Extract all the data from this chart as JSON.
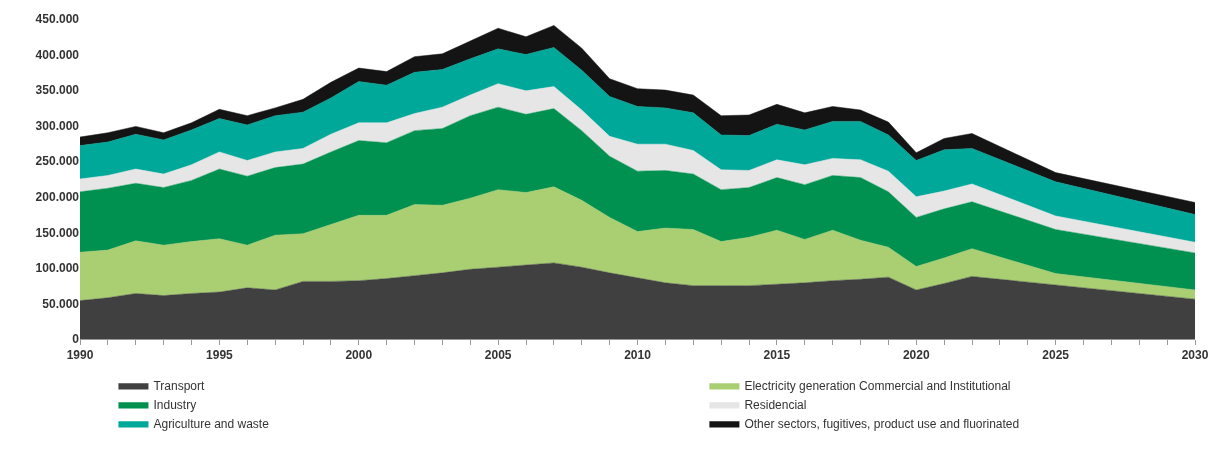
{
  "chart_data": {
    "type": "area",
    "stacked": true,
    "legend": "bottom",
    "x": [
      1990,
      1991,
      1992,
      1993,
      1994,
      1995,
      1996,
      1997,
      1998,
      1999,
      2000,
      2001,
      2002,
      2003,
      2004,
      2005,
      2006,
      2007,
      2008,
      2009,
      2010,
      2011,
      2012,
      2013,
      2014,
      2015,
      2016,
      2017,
      2018,
      2019,
      2020,
      2021,
      2022,
      2025,
      2030
    ],
    "series": [
      {
        "name": "Transport",
        "color": "#404040",
        "values": [
          54000,
          58000,
          64000,
          61000,
          64000,
          66000,
          72000,
          69000,
          81000,
          81000,
          82000,
          85000,
          89000,
          93000,
          98000,
          101000,
          104000,
          107000,
          101000,
          93000,
          86000,
          79000,
          75000,
          75000,
          75000,
          77000,
          79000,
          82000,
          84000,
          87000,
          69000,
          78000,
          88000,
          76000,
          56000
        ]
      },
      {
        "name": "Electricity generation Commercial and Institutional",
        "color": "#a9cf72",
        "values": [
          68000,
          67000,
          74000,
          71000,
          73000,
          75000,
          60000,
          77000,
          67000,
          80000,
          92000,
          89000,
          100000,
          95000,
          100000,
          109000,
          102000,
          107000,
          94000,
          78000,
          65000,
          77000,
          79000,
          62000,
          68000,
          76000,
          61000,
          71000,
          55000,
          42000,
          33000,
          36000,
          39000,
          16000,
          13000
        ]
      },
      {
        "name": "Industry",
        "color": "#009150",
        "values": [
          85000,
          87000,
          81000,
          81000,
          86000,
          98000,
          97000,
          95000,
          98000,
          102000,
          105000,
          102000,
          104000,
          108000,
          116000,
          116000,
          110000,
          110000,
          98000,
          86000,
          85000,
          81000,
          78000,
          73000,
          70000,
          74000,
          77000,
          77000,
          88000,
          78000,
          69000,
          69000,
          66000,
          62000,
          52000
        ]
      },
      {
        "name": "Residencial",
        "color": "#e6e6e6",
        "values": [
          18000,
          18000,
          20000,
          19000,
          22000,
          24000,
          22000,
          22000,
          22000,
          25000,
          25000,
          28000,
          24000,
          30000,
          29000,
          33000,
          33000,
          31000,
          29000,
          28000,
          38000,
          37000,
          33000,
          28000,
          24000,
          25000,
          28000,
          24000,
          25000,
          29000,
          29000,
          25000,
          25000,
          19000,
          15000
        ]
      },
      {
        "name": "Agriculture and waste",
        "color": "#00a89a",
        "values": [
          47000,
          47000,
          49000,
          48000,
          49000,
          47000,
          50000,
          51000,
          51000,
          51000,
          58000,
          53000,
          58000,
          53000,
          51000,
          49000,
          51000,
          55000,
          56000,
          56000,
          53000,
          51000,
          53000,
          49000,
          49000,
          50000,
          49000,
          52000,
          54000,
          51000,
          51000,
          58000,
          50000,
          48000,
          39000
        ]
      },
      {
        "name": "Other sectors, fugitives, product use and fluorinated",
        "color": "#141414",
        "values": [
          12000,
          13000,
          11000,
          10000,
          10000,
          13000,
          13000,
          11000,
          18000,
          22000,
          19000,
          19000,
          22000,
          22000,
          25000,
          29000,
          25000,
          31000,
          31000,
          25000,
          25000,
          25000,
          25000,
          27000,
          29000,
          28000,
          24000,
          21000,
          16000,
          18000,
          11000,
          16000,
          21000,
          13000,
          17000
        ]
      }
    ],
    "xlim": [
      1990,
      2030
    ],
    "xticks": [
      1990,
      {
        "value": 1991,
        "label": null
      },
      {
        "value": 1992,
        "label": null
      },
      {
        "value": 1993,
        "label": null
      },
      {
        "value": 1994,
        "label": null
      },
      1995,
      {
        "value": 1996,
        "label": null
      },
      {
        "value": 1997,
        "label": null
      },
      {
        "value": 1998,
        "label": null
      },
      {
        "value": 1999,
        "label": null
      },
      2000,
      {
        "value": 2001,
        "label": null
      },
      {
        "value": 2002,
        "label": null
      },
      {
        "value": 2003,
        "label": null
      },
      {
        "value": 2004,
        "label": null
      },
      2005,
      {
        "value": 2006,
        "label": null
      },
      {
        "value": 2007,
        "label": null
      },
      {
        "value": 2008,
        "label": null
      },
      {
        "value": 2009,
        "label": null
      },
      2010,
      {
        "value": 2011,
        "label": null
      },
      {
        "value": 2012,
        "label": null
      },
      {
        "value": 2013,
        "label": null
      },
      {
        "value": 2014,
        "label": null
      },
      2015,
      {
        "value": 2016,
        "label": null
      },
      {
        "value": 2017,
        "label": null
      },
      {
        "value": 2018,
        "label": null
      },
      {
        "value": 2019,
        "label": null
      },
      2020,
      {
        "value": 2021,
        "label": null
      },
      {
        "value": 2022,
        "label": null
      },
      {
        "value": 2023,
        "label": null
      },
      {
        "value": 2024,
        "label": null
      },
      2025,
      {
        "value": 2026,
        "label": null
      },
      {
        "value": 2027,
        "label": null
      },
      {
        "value": 2028,
        "label": null
      },
      {
        "value": 2029,
        "label": null
      },
      2030
    ],
    "ylim": [
      0,
      450000
    ],
    "yticks": [
      0,
      {
        "value": 50000,
        "label": "50.000"
      },
      {
        "value": 100000,
        "label": "100.000"
      },
      {
        "value": 150000,
        "label": "150.000"
      },
      {
        "value": 200000,
        "label": "200.000"
      },
      {
        "value": 250000,
        "label": "250.000"
      },
      {
        "value": 300000,
        "label": "300.000"
      },
      {
        "value": 350000,
        "label": "350.000"
      },
      {
        "value": 400000,
        "label": "400.000"
      },
      {
        "value": 450000,
        "label": "450.000"
      }
    ]
  }
}
